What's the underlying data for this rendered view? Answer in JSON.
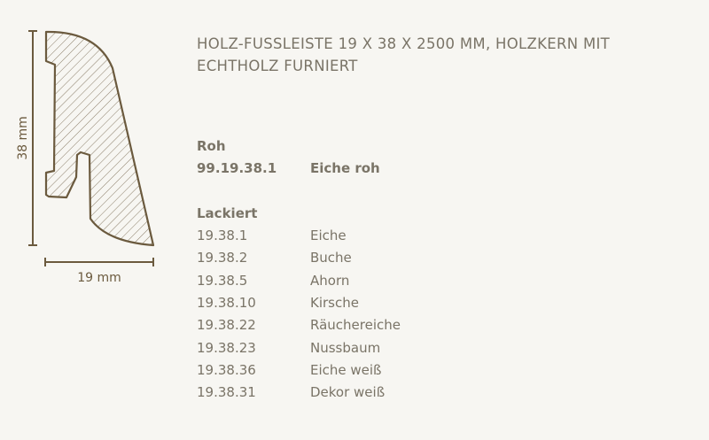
{
  "title": "HOLZ-FUSSLEISTE 19 X 38 X 2500 MM, HOLZKERN MIT ECHTHOLZ FURNIERT",
  "drawing": {
    "height_label": "38 mm",
    "width_label": "19 mm",
    "line_color": "#6b5a3e"
  },
  "roh": {
    "heading": "Roh",
    "items": [
      {
        "code": "99.19.38.1",
        "name": "Eiche roh"
      }
    ]
  },
  "lackiert": {
    "heading": "Lackiert",
    "items": [
      {
        "code": "19.38.1",
        "name": "Eiche"
      },
      {
        "code": "19.38.2",
        "name": "Buche"
      },
      {
        "code": "19.38.5",
        "name": "Ahorn"
      },
      {
        "code": "19.38.10",
        "name": "Kirsche"
      },
      {
        "code": "19.38.22",
        "name": "Räuchereiche"
      },
      {
        "code": "19.38.23",
        "name": "Nussbaum"
      },
      {
        "code": "19.38.36",
        "name": "Eiche weiß"
      },
      {
        "code": "19.38.31",
        "name": "Dekor weiß"
      }
    ]
  }
}
